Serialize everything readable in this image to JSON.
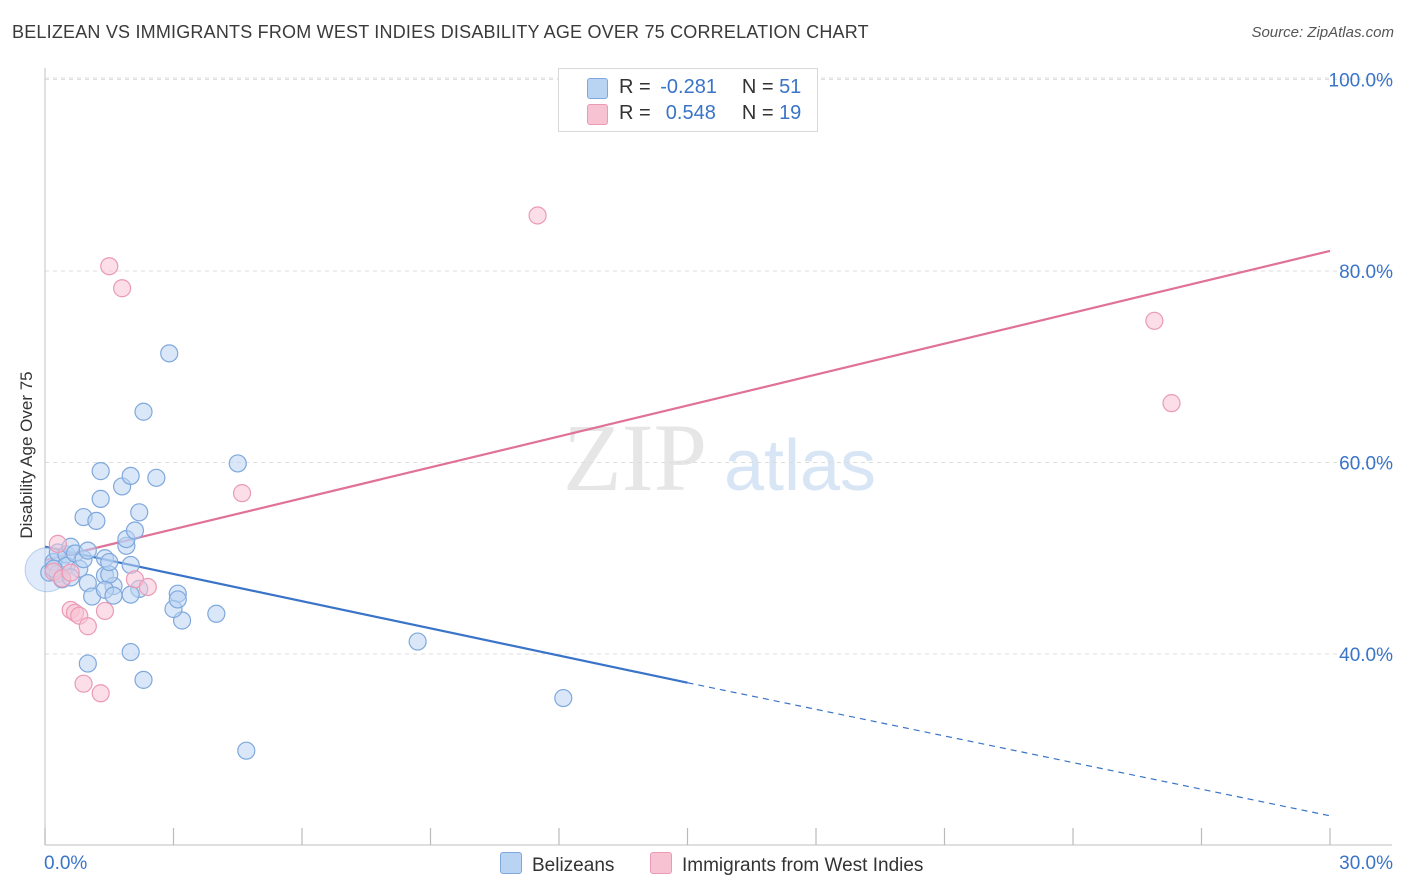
{
  "title": "BELIZEAN VS IMMIGRANTS FROM WEST INDIES DISABILITY AGE OVER 75 CORRELATION CHART",
  "source": "Source: ZipAtlas.com",
  "watermark": {
    "zip": "ZIP",
    "atlas": "atlas"
  },
  "colors": {
    "blue": "#3a74c8",
    "blue_fill": "#b9d3f3",
    "pink": "#e07199",
    "pink_fill": "#f7c3d3",
    "grid": "#dddddd"
  },
  "legend_top": [
    {
      "r_label": "R =",
      "r_value": "-0.281",
      "n_label": "N =",
      "n_value": "51"
    },
    {
      "r_label": "R =",
      "r_value": " 0.548",
      "n_label": "N =",
      "n_value": "19"
    }
  ],
  "chart_data": {
    "type": "scatter",
    "xlabel": "",
    "ylabel": "Disability Age Over 75",
    "xlim": [
      0,
      30
    ],
    "ylim": [
      20,
      100
    ],
    "x_tick_labels": [
      "0.0%",
      "30.0%"
    ],
    "y_tick_labels": [
      "40.0%",
      "60.0%",
      "80.0%",
      "100.0%"
    ],
    "y_ticks": [
      40,
      60,
      80,
      100
    ],
    "series": [
      {
        "name": "Belizeans",
        "color": "#3a74c8",
        "trend": {
          "x": [
            0,
            15
          ],
          "y": [
            51.2,
            37.0
          ],
          "dashed_x": [
            15,
            30
          ],
          "dashed_y": [
            37.0,
            23.1
          ]
        },
        "points": [
          [
            0.1,
            48.5
          ],
          [
            0.2,
            49.6
          ],
          [
            0.3,
            50.6
          ],
          [
            0.3,
            48.4
          ],
          [
            0.4,
            47.8
          ],
          [
            0.5,
            50.4
          ],
          [
            0.5,
            49.2
          ],
          [
            0.6,
            51.2
          ],
          [
            0.7,
            50.5
          ],
          [
            0.8,
            48.9
          ],
          [
            0.9,
            49.9
          ],
          [
            1.0,
            50.8
          ],
          [
            0.9,
            54.3
          ],
          [
            1.2,
            53.9
          ],
          [
            1.3,
            56.2
          ],
          [
            1.3,
            59.1
          ],
          [
            1.0,
            47.4
          ],
          [
            1.1,
            46.0
          ],
          [
            1.0,
            39.0
          ],
          [
            1.4,
            48.2
          ],
          [
            1.6,
            47.1
          ],
          [
            1.5,
            48.3
          ],
          [
            1.4,
            46.7
          ],
          [
            1.6,
            46.1
          ],
          [
            1.4,
            50.0
          ],
          [
            1.5,
            49.6
          ],
          [
            1.9,
            51.3
          ],
          [
            1.9,
            52.0
          ],
          [
            2.0,
            49.3
          ],
          [
            2.1,
            52.9
          ],
          [
            2.2,
            46.8
          ],
          [
            2.0,
            46.2
          ],
          [
            1.8,
            57.5
          ],
          [
            2.0,
            58.6
          ],
          [
            2.2,
            54.8
          ],
          [
            2.6,
            58.4
          ],
          [
            2.3,
            65.3
          ],
          [
            2.9,
            71.4
          ],
          [
            3.1,
            46.3
          ],
          [
            3.2,
            43.5
          ],
          [
            2.0,
            40.2
          ],
          [
            2.3,
            37.3
          ],
          [
            3.0,
            44.7
          ],
          [
            3.1,
            45.7
          ],
          [
            4.0,
            44.2
          ],
          [
            4.5,
            59.9
          ],
          [
            4.7,
            29.9
          ],
          [
            8.7,
            41.3
          ],
          [
            12.1,
            35.4
          ],
          [
            0.2,
            48.9
          ],
          [
            0.6,
            48.0
          ]
        ]
      },
      {
        "name": "Immigrants from West Indies",
        "color": "#e07199",
        "trend": {
          "x": [
            0,
            30
          ],
          "y": [
            49.8,
            82.1
          ]
        },
        "points": [
          [
            0.2,
            48.6
          ],
          [
            0.3,
            51.5
          ],
          [
            0.4,
            47.9
          ],
          [
            0.6,
            48.5
          ],
          [
            0.6,
            44.6
          ],
          [
            0.7,
            44.3
          ],
          [
            0.8,
            44.0
          ],
          [
            1.0,
            42.9
          ],
          [
            0.9,
            36.9
          ],
          [
            1.3,
            35.9
          ],
          [
            1.4,
            44.5
          ],
          [
            1.5,
            80.5
          ],
          [
            1.8,
            78.2
          ],
          [
            2.1,
            47.8
          ],
          [
            2.4,
            47.0
          ],
          [
            4.6,
            56.8
          ],
          [
            11.5,
            85.8
          ],
          [
            25.9,
            74.8
          ],
          [
            26.3,
            66.2
          ]
        ]
      }
    ]
  },
  "bottom_legend": [
    "Belizeans",
    "Immigrants from West Indies"
  ]
}
